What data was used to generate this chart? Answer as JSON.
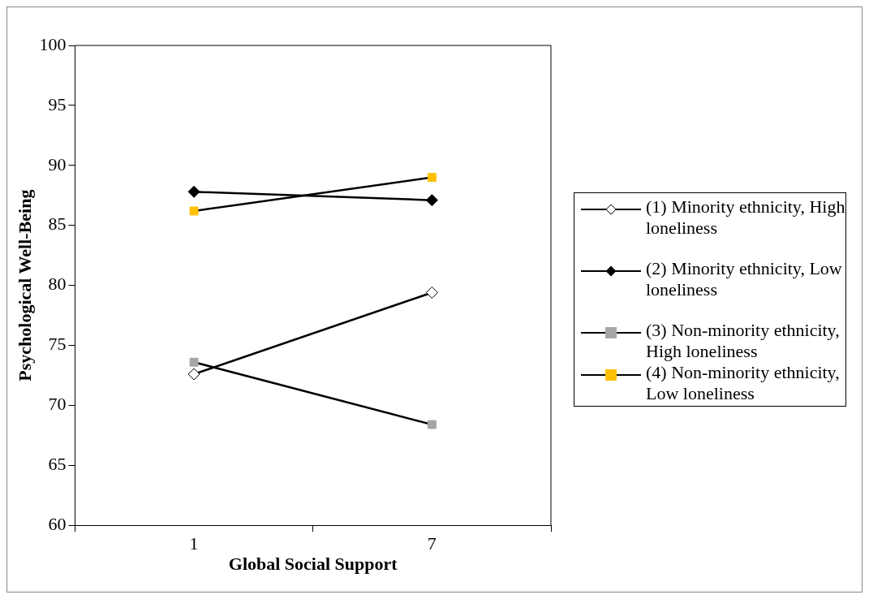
{
  "chart_data": {
    "type": "line",
    "xlabel": "Global Social Support",
    "ylabel": "Psychological Well-Being",
    "categories": [
      "1",
      "7"
    ],
    "ylim": [
      60,
      100
    ],
    "yticks": [
      60,
      65,
      70,
      75,
      80,
      85,
      90,
      95,
      100
    ],
    "grid": false,
    "legend": "right",
    "series": [
      {
        "name": "(1) Minority ethnicity, High loneliness",
        "color": "#ffffff",
        "marker": "diamond",
        "values": [
          72.6,
          79.4
        ]
      },
      {
        "name": "(2) Minority ethnicity, Low loneliness",
        "color": "#000000",
        "marker": "diamond",
        "values": [
          87.8,
          87.1
        ]
      },
      {
        "name": "(3) Non-minority ethnicity, High loneliness",
        "color": "#a6a6a6",
        "marker": "square",
        "values": [
          73.6,
          68.4
        ]
      },
      {
        "name": "(4) Non-minority ethnicity, Low loneliness",
        "color": "#ffc000",
        "marker": "square",
        "values": [
          86.2,
          89.0
        ]
      }
    ]
  }
}
